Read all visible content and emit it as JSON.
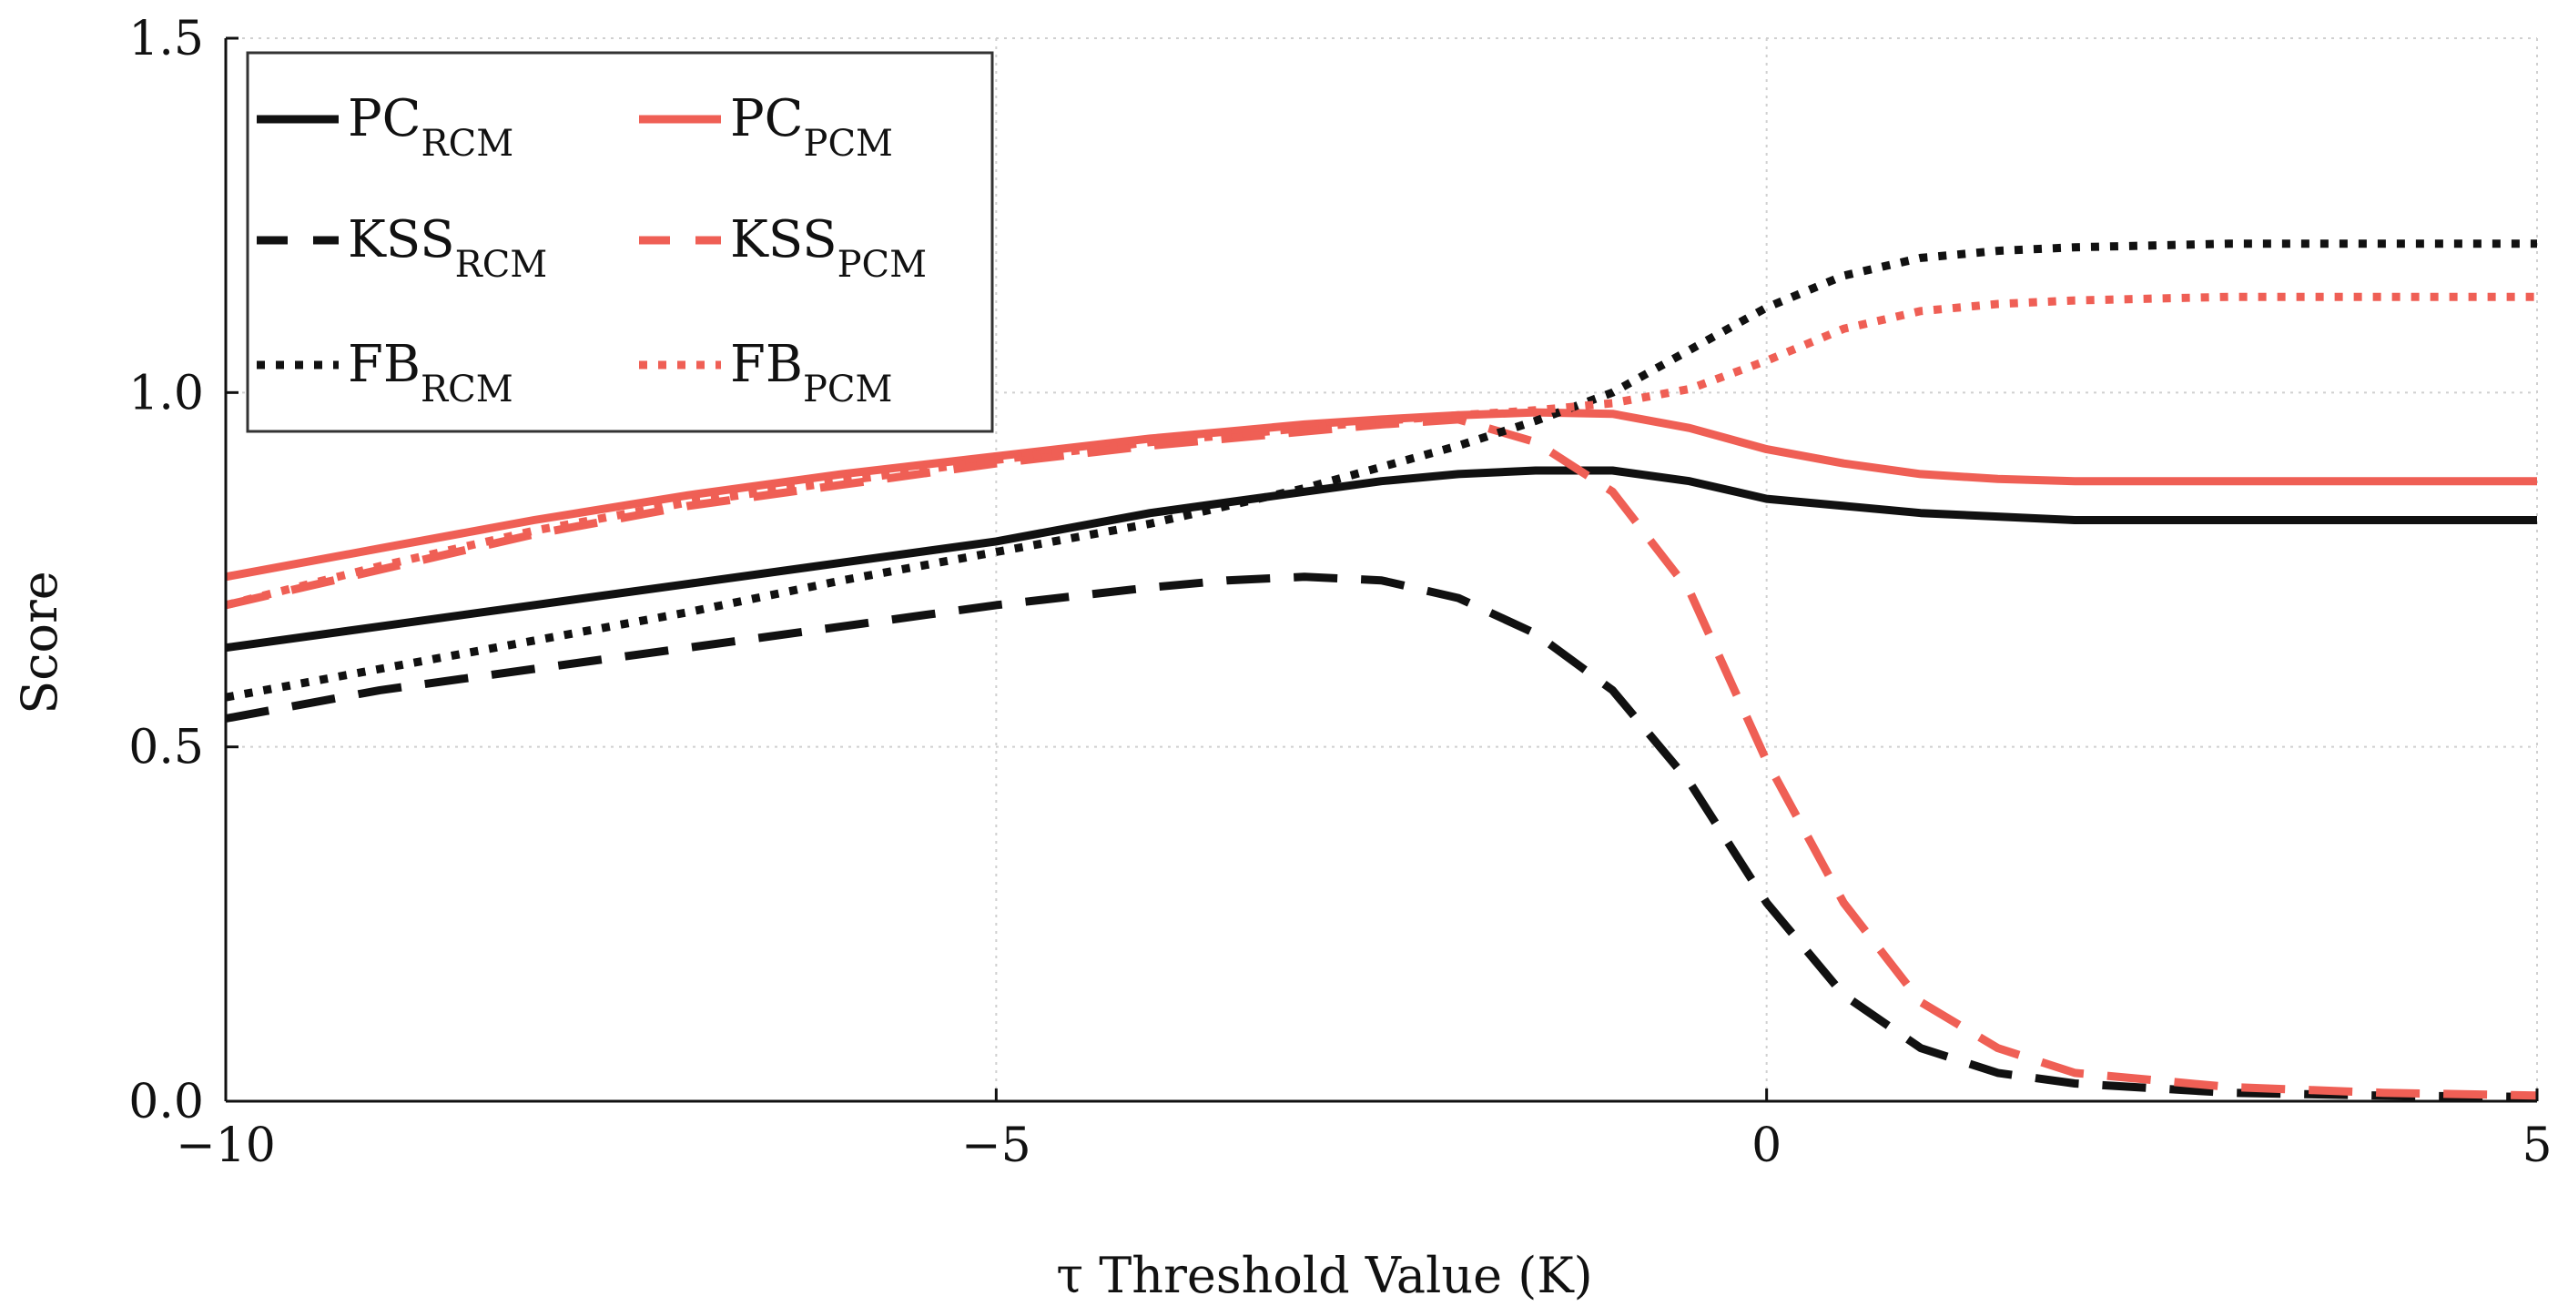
{
  "chart_data": {
    "type": "line",
    "title": "",
    "xlabel": "τ Threshold Value (K)",
    "ylabel": "Score",
    "xlim": [
      -10,
      5
    ],
    "ylim": [
      0,
      1.5
    ],
    "xticks": [
      -10,
      -5,
      0,
      5
    ],
    "xtick_labels": [
      "−10",
      "−5",
      "0",
      "5"
    ],
    "yticks": [
      0,
      0.5,
      1.0,
      1.5
    ],
    "ytick_labels": [
      "0.0",
      "0.5",
      "1.0",
      "1.5"
    ],
    "grid": true,
    "legend_position": "top-left",
    "x": [
      -10,
      -9,
      -8,
      -7,
      -6,
      -5,
      -4,
      -3.5,
      -3,
      -2.5,
      -2,
      -1.5,
      -1,
      -0.5,
      0,
      0.5,
      1,
      1.5,
      2,
      3,
      4,
      5
    ],
    "series": [
      {
        "name": "PC_RCM",
        "label": "PC",
        "sub": "RCM",
        "color": "#111111",
        "dash": "solid",
        "values": [
          0.64,
          0.67,
          0.7,
          0.73,
          0.76,
          0.79,
          0.83,
          0.845,
          0.86,
          0.875,
          0.885,
          0.89,
          0.89,
          0.875,
          0.85,
          0.84,
          0.83,
          0.825,
          0.82,
          0.82,
          0.82,
          0.82
        ]
      },
      {
        "name": "PC_PCM",
        "label": "PC",
        "sub": "PCM",
        "color": "#ef5f55",
        "dash": "solid",
        "values": [
          0.74,
          0.78,
          0.82,
          0.855,
          0.885,
          0.91,
          0.935,
          0.945,
          0.955,
          0.962,
          0.968,
          0.972,
          0.97,
          0.95,
          0.92,
          0.9,
          0.885,
          0.878,
          0.875,
          0.875,
          0.875,
          0.875
        ]
      },
      {
        "name": "KSS_RCM",
        "label": "KSS",
        "sub": "RCM",
        "color": "#111111",
        "dash": "dashed",
        "values": [
          0.54,
          0.58,
          0.61,
          0.64,
          0.67,
          0.7,
          0.725,
          0.735,
          0.74,
          0.735,
          0.71,
          0.66,
          0.58,
          0.45,
          0.28,
          0.15,
          0.075,
          0.04,
          0.025,
          0.012,
          0.008,
          0.006
        ]
      },
      {
        "name": "KSS_PCM",
        "label": "KSS",
        "sub": "PCM",
        "color": "#ef5f55",
        "dash": "dashed",
        "values": [
          0.7,
          0.75,
          0.8,
          0.84,
          0.87,
          0.9,
          0.925,
          0.935,
          0.945,
          0.955,
          0.962,
          0.93,
          0.86,
          0.72,
          0.48,
          0.28,
          0.14,
          0.075,
          0.04,
          0.02,
          0.012,
          0.008
        ]
      },
      {
        "name": "FB_RCM",
        "label": "FB",
        "sub": "RCM",
        "color": "#111111",
        "dash": "dotted",
        "values": [
          0.57,
          0.61,
          0.65,
          0.69,
          0.735,
          0.775,
          0.815,
          0.84,
          0.865,
          0.895,
          0.925,
          0.96,
          1.0,
          1.06,
          1.12,
          1.165,
          1.19,
          1.2,
          1.205,
          1.21,
          1.21,
          1.21
        ]
      },
      {
        "name": "FB_PCM",
        "label": "FB",
        "sub": "PCM",
        "color": "#ef5f55",
        "dash": "dotted",
        "values": [
          0.7,
          0.755,
          0.805,
          0.845,
          0.875,
          0.905,
          0.93,
          0.94,
          0.95,
          0.96,
          0.968,
          0.975,
          0.985,
          1.005,
          1.045,
          1.09,
          1.115,
          1.125,
          1.13,
          1.135,
          1.135,
          1.135
        ]
      }
    ]
  }
}
